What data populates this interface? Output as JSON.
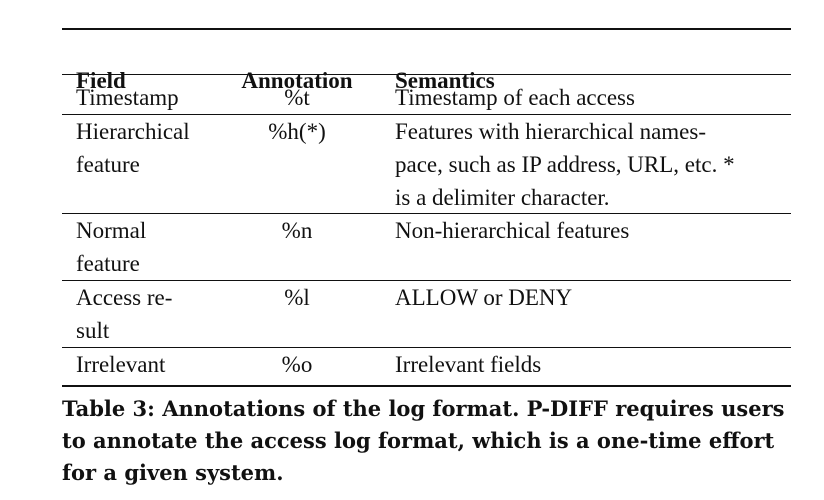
{
  "table": {
    "headers": {
      "field": "Field",
      "annotation": "Annotation",
      "semantics": "Semantics"
    },
    "rows": [
      {
        "field": "Timestamp",
        "annotation": "%t",
        "semantics": "Timestamp of each access"
      },
      {
        "field": "Hierarchical\nfeature",
        "annotation": "%h(*)",
        "semantics": "Features with hierarchical names-\npace, such as IP address, URL, etc. *\nis a delimiter character."
      },
      {
        "field": "Normal\nfeature",
        "annotation": "%n",
        "semantics": "Non-hierarchical features"
      },
      {
        "field": "Access  re-\nsult",
        "annotation": "%l",
        "semantics": "ALLOW or DENY"
      },
      {
        "field": "Irrelevant",
        "annotation": "%o",
        "semantics": "Irrelevant fields"
      }
    ]
  },
  "caption": "Table 3: Annotations of the log format. P-DIFF requires users to annotate the access log format, which is a one-time effort for a given system."
}
